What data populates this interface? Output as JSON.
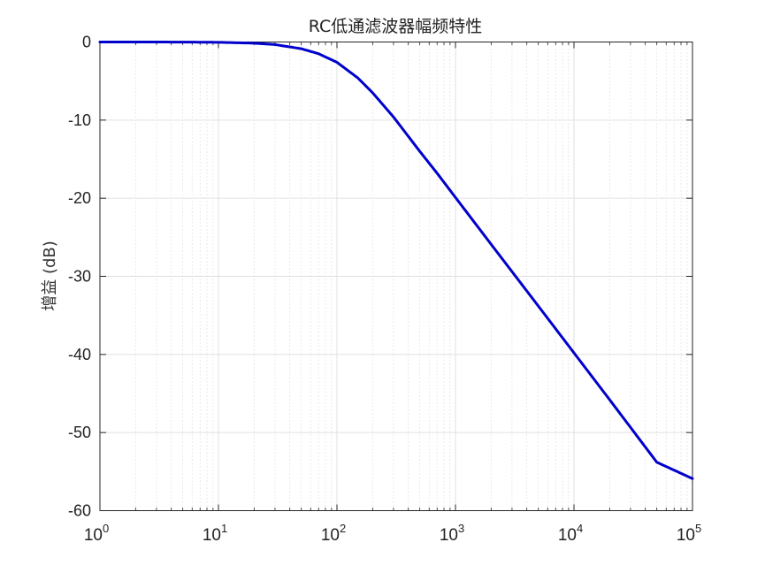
{
  "chart_data": {
    "type": "line",
    "title": "RC低通滤波器幅频特性",
    "xlabel": "",
    "ylabel": "增益 (dB)",
    "x_scale": "log",
    "xlim": [
      1,
      100000
    ],
    "ylim": [
      -60,
      0
    ],
    "x_ticks": [
      {
        "base": "10",
        "exp": "0"
      },
      {
        "base": "10",
        "exp": "1"
      },
      {
        "base": "10",
        "exp": "2"
      },
      {
        "base": "10",
        "exp": "3"
      },
      {
        "base": "10",
        "exp": "4"
      },
      {
        "base": "10",
        "exp": "5"
      }
    ],
    "y_ticks": [
      "0",
      "-10",
      "-20",
      "-30",
      "-40",
      "-50",
      "-60"
    ],
    "grid": true,
    "minor_grid": true,
    "series": [
      {
        "color": "#0000cc",
        "x": [
          1,
          2,
          5,
          10,
          20,
          30,
          50,
          70,
          100,
          150,
          200,
          300,
          500,
          700,
          1000,
          2000,
          5000,
          10000,
          20000,
          50000,
          100000
        ],
        "y": [
          0,
          0,
          -0.01,
          -0.04,
          -0.15,
          -0.33,
          -0.86,
          -1.5,
          -2.6,
          -4.6,
          -6.5,
          -9.6,
          -14.0,
          -16.8,
          -19.9,
          -25.9,
          -33.8,
          -39.8,
          -45.8,
          -53.8,
          -55.9
        ]
      }
    ]
  }
}
